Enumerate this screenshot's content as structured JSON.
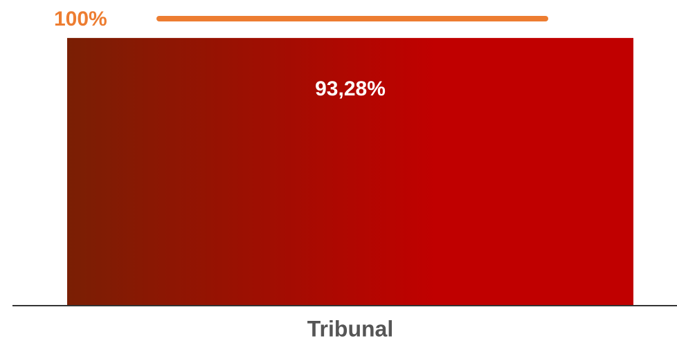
{
  "chart_data": {
    "type": "bar",
    "categories": [
      "Tribunal"
    ],
    "values": [
      93.28
    ],
    "value_labels": [
      "93,28%"
    ],
    "color": "#c00000",
    "gradient_start": "#7a1f04",
    "ylim": [
      0,
      100
    ],
    "reference_line": {
      "value": 100,
      "label": "100%",
      "color": "#ed7d31"
    }
  }
}
